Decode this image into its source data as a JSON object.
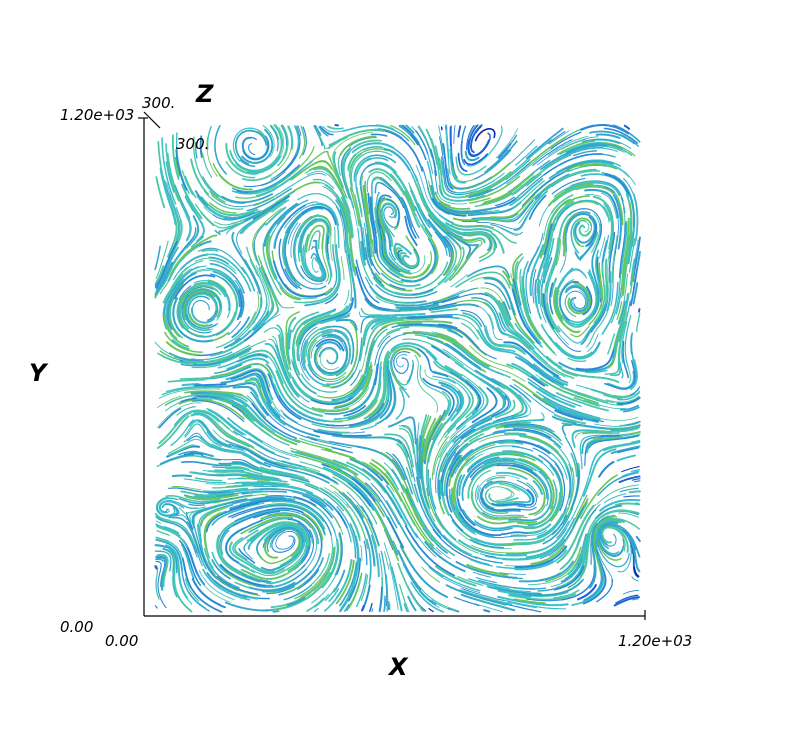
{
  "axes": {
    "x_title": "X",
    "y_title": "Y",
    "z_title": "Z",
    "x_min_label": "0.00",
    "x_max_label": "1.20e+03",
    "y_min_label": "0.00",
    "y_max_label": "1.20e+03",
    "z_max_label": "300.",
    "z_tick_label": "300."
  },
  "field": {
    "x_range": [
      0,
      1200
    ],
    "y_range": [
      0,
      1200
    ],
    "colormap": [
      "#0a1fb0",
      "#1b5fd6",
      "#2a88d8",
      "#33a6cc",
      "#3bbfc9",
      "#4cc7a8",
      "#68c65a"
    ]
  }
}
